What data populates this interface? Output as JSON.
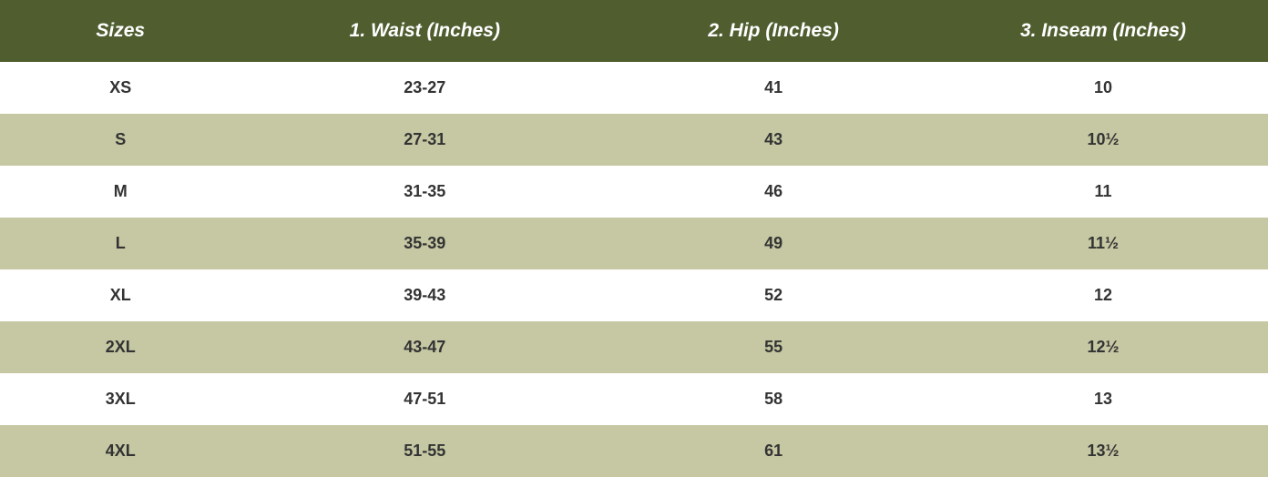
{
  "table": {
    "type": "table",
    "header_bg_color": "#4f5d2f",
    "header_text_color": "#ffffff",
    "row_odd_bg_color": "#ffffff",
    "row_even_bg_color": "#c6c8a3",
    "cell_text_color": "#333333",
    "header_fontsize": 21,
    "cell_fontsize": 18,
    "columns": [
      "Sizes",
      "1. Waist (Inches)",
      "2. Hip (Inches)",
      "3. Inseam (Inches)"
    ],
    "rows": [
      [
        "XS",
        "23-27",
        "41",
        "10"
      ],
      [
        "S",
        "27-31",
        "43",
        "10½"
      ],
      [
        "M",
        "31-35",
        "46",
        "11"
      ],
      [
        "L",
        "35-39",
        "49",
        "11½"
      ],
      [
        "XL",
        "39-43",
        "52",
        "12"
      ],
      [
        "2XL",
        "43-47",
        "55",
        "12½"
      ],
      [
        "3XL",
        "47-51",
        "58",
        "13"
      ],
      [
        "4XL",
        "51-55",
        "61",
        "13½"
      ]
    ]
  }
}
